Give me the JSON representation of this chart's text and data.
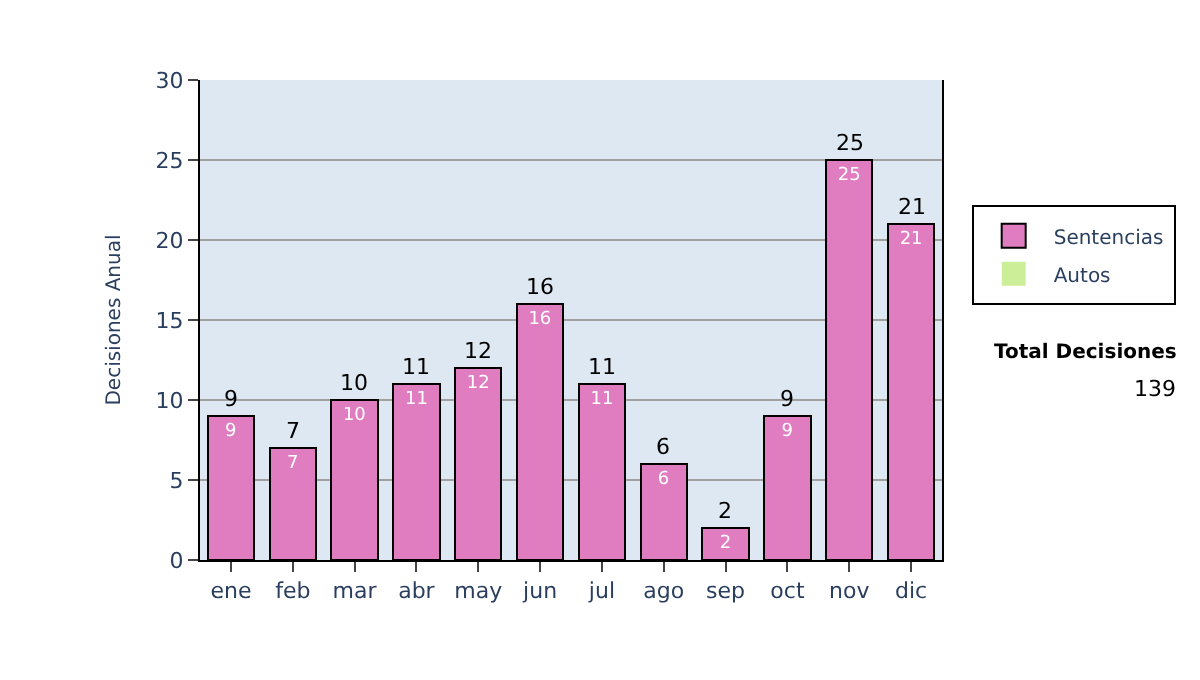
{
  "chart_data": {
    "type": "bar",
    "stacked": true,
    "ylabel": "Decisiones Anual",
    "categories": [
      "ene",
      "feb",
      "mar",
      "abr",
      "may",
      "jun",
      "jul",
      "ago",
      "sep",
      "oct",
      "nov",
      "dic"
    ],
    "series": [
      {
        "name": "Sentencias",
        "color": "#e07cc0",
        "values": [
          9,
          7,
          10,
          11,
          12,
          16,
          11,
          6,
          2,
          9,
          25,
          21
        ],
        "value_labels": [
          "9",
          "7",
          "10",
          "11",
          "12",
          "16",
          "11",
          "6",
          "2",
          "9",
          "25",
          "21"
        ]
      },
      {
        "name": "Autos",
        "color": "#ccee99",
        "values": [
          0,
          0,
          0,
          0,
          0,
          0,
          0,
          0,
          0,
          0,
          0,
          0
        ]
      }
    ],
    "totals": [
      "9",
      "7",
      "10",
      "11",
      "12",
      "16",
      "11",
      "6",
      "2",
      "9",
      "25",
      "21"
    ],
    "ylim": [
      0,
      30
    ],
    "yticks": [
      0,
      5,
      10,
      15,
      20,
      25,
      30
    ],
    "grid": "y",
    "legend": "right",
    "annotations": [
      "Total Decisiones",
      "139"
    ]
  }
}
